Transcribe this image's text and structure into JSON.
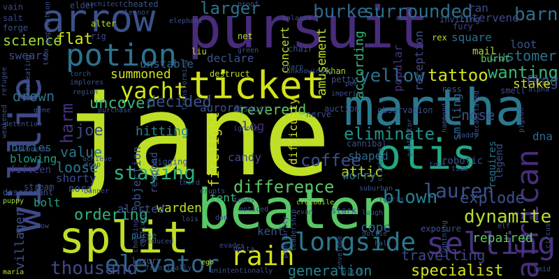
{
  "words": [
    {
      "text": "jane",
      "color": "#bddf26",
      "vertical": false
    },
    {
      "text": "pursuit",
      "color": "#472c7a",
      "vertical": false
    },
    {
      "text": "martha",
      "color": "#2a788e",
      "vertical": false
    },
    {
      "text": "beaten",
      "color": "#58c765",
      "vertical": false
    },
    {
      "text": "otis",
      "color": "#23a884",
      "vertical": false
    },
    {
      "text": "split",
      "color": "#bddf26",
      "vertical": false
    },
    {
      "text": "willie",
      "color": "#3e4989",
      "vertical": true
    },
    {
      "text": "ticket",
      "color": "#d2e21b",
      "vertical": false
    },
    {
      "text": "arrow",
      "color": "#3b518b",
      "vertical": false
    },
    {
      "text": "potion",
      "color": "#2c718e",
      "vertical": false
    },
    {
      "text": "african",
      "color": "#472d7b",
      "vertical": true
    },
    {
      "text": "rain",
      "color": "#d2e21b",
      "vertical": false
    },
    {
      "text": "alongside",
      "color": "#2a788e",
      "vertical": false
    },
    {
      "text": "selling",
      "color": "#46337f",
      "vertical": false
    },
    {
      "text": "elevator",
      "color": "#31688e",
      "vertical": false
    },
    {
      "text": "yacht",
      "color": "#d2e21b",
      "vertical": false
    },
    {
      "text": "burke",
      "color": "#31688e",
      "vertical": false
    },
    {
      "text": "surrounded",
      "color": "#2d708e",
      "vertical": false
    },
    {
      "text": "larger",
      "color": "#2c728e",
      "vertical": false
    },
    {
      "text": "barn",
      "color": "#2d708e",
      "vertical": false
    },
    {
      "text": "difference",
      "color": "#58c765",
      "vertical": false
    },
    {
      "text": "staying",
      "color": "#2db27d",
      "vertical": false
    },
    {
      "text": "lauren",
      "color": "#3b528b",
      "vertical": false
    },
    {
      "text": "blown",
      "color": "#27808e",
      "vertical": false
    },
    {
      "text": "eliminate",
      "color": "#21918c",
      "vertical": false
    },
    {
      "text": "yellow",
      "color": "#2e6e8e",
      "vertical": false
    },
    {
      "text": "dynamite",
      "color": "#b5de2b",
      "vertical": false
    },
    {
      "text": "thousand",
      "color": "#3e4a89",
      "vertical": false
    },
    {
      "text": "explode",
      "color": "#3b528b",
      "vertical": false
    },
    {
      "text": "customer",
      "color": "#2c728e",
      "vertical": false
    },
    {
      "text": "wanting",
      "color": "#35b779",
      "vertical": false
    },
    {
      "text": "tattoo",
      "color": "#d2e21b",
      "vertical": false
    },
    {
      "text": "flat",
      "color": "#d2e21b",
      "vertical": false
    },
    {
      "text": "science",
      "color": "#a0da39",
      "vertical": false
    },
    {
      "text": "harm",
      "color": "#46327e",
      "vertical": true
    },
    {
      "text": "uncover",
      "color": "#35b779",
      "vertical": false
    },
    {
      "text": "decided",
      "color": "#3b528b",
      "vertical": false
    },
    {
      "text": "summoned",
      "color": "#d2e21b",
      "vertical": false
    },
    {
      "text": "drown",
      "color": "#2c728e",
      "vertical": false
    },
    {
      "text": "ordering",
      "color": "#2fb47c",
      "vertical": false
    },
    {
      "text": "loose",
      "color": "#2a788e",
      "vertical": false
    },
    {
      "text": "coffee",
      "color": "#3b518b",
      "vertical": false
    },
    {
      "text": "reverend",
      "color": "#5ec962",
      "vertical": false
    },
    {
      "text": "firefight",
      "color": "#d2e21b",
      "vertical": true
    },
    {
      "text": "joe",
      "color": "#3e4a89",
      "vertical": false
    },
    {
      "text": "value",
      "color": "#2c728e",
      "vertical": false
    },
    {
      "text": "hitting",
      "color": "#25848e",
      "vertical": false
    },
    {
      "text": "specialist",
      "color": "#d2e21b",
      "vertical": false
    },
    {
      "text": "generation",
      "color": "#25848e",
      "vertical": false
    },
    {
      "text": "travelling",
      "color": "#3f4889",
      "vertical": false
    },
    {
      "text": "unstable",
      "color": "#31688e",
      "vertical": false
    },
    {
      "text": "flag",
      "color": "#3e4a89",
      "vertical": false
    },
    {
      "text": "nose",
      "color": "#3b528b",
      "vertical": false
    },
    {
      "text": "stake",
      "color": "#d2e21b",
      "vertical": false
    },
    {
      "text": "mail",
      "color": "#a8db34",
      "vertical": false
    },
    {
      "text": "burnt",
      "color": "#5ec962",
      "vertical": false
    },
    {
      "text": "warden",
      "color": "#bddf26",
      "vertical": false
    },
    {
      "text": "attic",
      "color": "#b5de2b",
      "vertical": false
    },
    {
      "text": "worry",
      "color": "#2c728e",
      "vertical": false
    },
    {
      "text": "tent",
      "color": "#35b779",
      "vertical": false
    },
    {
      "text": "log",
      "color": "#482878",
      "vertical": false
    },
    {
      "text": "candy",
      "color": "#3e4a89",
      "vertical": false
    },
    {
      "text": "shaped",
      "color": "#306a8e",
      "vertical": false
    },
    {
      "text": "shorty",
      "color": "#3e4a89",
      "vertical": false
    },
    {
      "text": "blowing",
      "color": "#1f9f88",
      "vertical": false
    },
    {
      "text": "fifteen",
      "color": "#443a83",
      "vertical": false
    },
    {
      "text": "buries",
      "color": "#2e6e8e",
      "vertical": false
    },
    {
      "text": "bolt",
      "color": "#22a785",
      "vertical": false
    },
    {
      "text": "nora",
      "color": "#3b528b",
      "vertical": false
    },
    {
      "text": "repaired",
      "color": "#5ec962",
      "vertical": false
    },
    {
      "text": "cope",
      "color": "#31688e",
      "vertical": false
    },
    {
      "text": "kent",
      "color": "#3b528b",
      "vertical": false
    },
    {
      "text": "alerted",
      "color": "#3b528b",
      "vertical": false
    },
    {
      "text": "swears",
      "color": "#3e4a89",
      "vertical": false
    },
    {
      "text": "villager",
      "color": "#3b528b",
      "vertical": true
    },
    {
      "text": "declare",
      "color": "#3b528b",
      "vertical": false
    },
    {
      "text": "amusement",
      "color": "#bddf26",
      "vertical": true
    },
    {
      "text": "according",
      "color": "#35b779",
      "vertical": true
    },
    {
      "text": "difficulty",
      "color": "#d2e21b",
      "vertical": true
    },
    {
      "text": "objection",
      "color": "#3b518b",
      "vertical": true
    },
    {
      "text": "respond",
      "color": "#3b528b",
      "vertical": true
    },
    {
      "text": "aurora",
      "color": "#3b528b",
      "vertical": false
    },
    {
      "text": "concert",
      "color": "#bddf26",
      "vertical": true
    },
    {
      "text": "popular",
      "color": "#46327e",
      "vertical": true
    },
    {
      "text": "reception",
      "color": "#3e4a89",
      "vertical": true
    },
    {
      "text": "intervene",
      "color": "#3e4a89",
      "vertical": false
    },
    {
      "text": "loot",
      "color": "#3b528b",
      "vertical": false
    },
    {
      "text": "square",
      "color": "#2e6e8e",
      "vertical": false
    },
    {
      "text": "ran",
      "color": "#3e4a89",
      "vertical": false
    },
    {
      "text": "smiling",
      "color": "#31688e",
      "vertical": true
    },
    {
      "text": "legend",
      "color": "#3b528b",
      "vertical": true
    },
    {
      "text": "requires",
      "color": "#2c718e",
      "vertical": true
    },
    {
      "text": "dna",
      "color": "#31688e",
      "vertical": false
    },
    {
      "text": "robotic",
      "color": "#3b528b",
      "vertical": false
    },
    {
      "text": "purse",
      "color": "#2c728e",
      "vertical": false
    },
    {
      "text": "luxury",
      "color": "#3b528b",
      "vertical": false
    },
    {
      "text": "elder",
      "color": "#3e4a89",
      "vertical": false
    },
    {
      "text": "cheated",
      "color": "#3b528b",
      "vertical": false
    },
    {
      "text": "vain",
      "color": "#3e4a89",
      "vertical": false
    },
    {
      "text": "salt",
      "color": "#3e4a89",
      "vertical": false
    },
    {
      "text": "forge",
      "color": "#3b528b",
      "vertical": false
    },
    {
      "text": "alter",
      "color": "#bddf26",
      "vertical": false
    },
    {
      "text": "rig",
      "color": "#3e4a89",
      "vertical": false
    },
    {
      "text": "net",
      "color": "#bddf26",
      "vertical": false
    },
    {
      "text": "liu",
      "color": "#bddf26",
      "vertical": false
    },
    {
      "text": "khan",
      "color": "#a0da39",
      "vertical": false
    },
    {
      "text": "chair",
      "color": "#3b528b",
      "vertical": false
    },
    {
      "text": "petty",
      "color": "#3b528b",
      "vertical": false
    },
    {
      "text": "rex",
      "color": "#bddf26",
      "vertical": false
    },
    {
      "text": "fury",
      "color": "#3e4a89",
      "vertical": false
    },
    {
      "text": "inviting",
      "color": "#3b528b",
      "vertical": false
    },
    {
      "text": "destruct",
      "color": "#bddf26",
      "vertical": false
    },
    {
      "text": "torch",
      "color": "#3b528b",
      "vertical": false
    },
    {
      "text": "implores",
      "color": "#3b528b",
      "vertical": false
    },
    {
      "text": "region",
      "color": "#3b528b",
      "vertical": false
    },
    {
      "text": "disgust",
      "color": "#3b528b",
      "vertical": false
    },
    {
      "text": "auction",
      "color": "#3b528b",
      "vertical": false
    },
    {
      "text": "observation",
      "color": "#3b528b",
      "vertical": false
    },
    {
      "text": "ross",
      "color": "#3b528b",
      "vertical": false
    },
    {
      "text": "smell",
      "color": "#3e4a89",
      "vertical": false
    },
    {
      "text": "nerve",
      "color": "#3b528b",
      "vertical": false
    },
    {
      "text": "ignore",
      "color": "#3b528b",
      "vertical": false
    },
    {
      "text": "cannibal",
      "color": "#3b528b",
      "vertical": false
    },
    {
      "text": "digging",
      "color": "#3b528b",
      "vertical": false
    },
    {
      "text": "achieve",
      "color": "#3b528b",
      "vertical": false
    },
    {
      "text": "drop",
      "color": "#3b528b",
      "vertical": false
    },
    {
      "text": "advanced",
      "color": "#3b528b",
      "vertical": false
    },
    {
      "text": "stream",
      "color": "#3b528b",
      "vertical": false
    },
    {
      "text": "descendant",
      "color": "#3b528b",
      "vertical": false
    },
    {
      "text": "puppy",
      "color": "#a0da39",
      "vertical": false
    },
    {
      "text": "cow",
      "color": "#3b528b",
      "vertical": false
    },
    {
      "text": "maria",
      "color": "#bddf26",
      "vertical": false
    },
    {
      "text": "don",
      "color": "#3b528b",
      "vertical": false
    },
    {
      "text": "lois",
      "color": "#3b528b",
      "vertical": false
    },
    {
      "text": "evades",
      "color": "#3b528b",
      "vertical": false
    },
    {
      "text": "delta",
      "color": "#3b528b",
      "vertical": false
    },
    {
      "text": "ego",
      "color": "#bddf26",
      "vertical": false
    },
    {
      "text": "unintentionally",
      "color": "#3b528b",
      "vertical": false
    },
    {
      "text": "crocodile",
      "color": "#a0da39",
      "vertical": false
    },
    {
      "text": "evan",
      "color": "#3b528b",
      "vertical": false
    },
    {
      "text": "stark",
      "color": "#3b528b",
      "vertical": false
    },
    {
      "text": "laugh",
      "color": "#3b528b",
      "vertical": false
    },
    {
      "text": "dottie",
      "color": "#3b528b",
      "vertical": false
    },
    {
      "text": "half",
      "color": "#3b528b",
      "vertical": false
    },
    {
      "text": "exposure",
      "color": "#3b528b",
      "vertical": false
    },
    {
      "text": "amid",
      "color": "#3b528b",
      "vertical": false
    },
    {
      "text": "elf",
      "color": "#3b528b",
      "vertical": false
    },
    {
      "text": "ferris",
      "color": "#3b528b",
      "vertical": false
    },
    {
      "text": "suburban",
      "color": "#3b528b",
      "vertical": false
    },
    {
      "text": "tide",
      "color": "#3b528b",
      "vertical": false
    },
    {
      "text": "toss",
      "color": "#3b528b",
      "vertical": false
    },
    {
      "text": "third",
      "color": "#3b528b",
      "vertical": false
    },
    {
      "text": "erupts",
      "color": "#3b528b",
      "vertical": false
    },
    {
      "text": "tends",
      "color": "#3b528b",
      "vertical": false
    },
    {
      "text": "noticed",
      "color": "#3b528b",
      "vertical": false
    },
    {
      "text": "pitch",
      "color": "#3b528b",
      "vertical": false
    },
    {
      "text": "frantically",
      "color": "#3b528b",
      "vertical": false
    },
    {
      "text": "produced",
      "color": "#3b528b",
      "vertical": false
    },
    {
      "text": "architect",
      "color": "#3b528b",
      "vertical": false
    },
    {
      "text": "eleanor",
      "color": "#3b528b",
      "vertical": false
    },
    {
      "text": "proof",
      "color": "#3b528b",
      "vertical": false
    },
    {
      "text": "balance",
      "color": "#3b528b",
      "vertical": false
    },
    {
      "text": "elephant",
      "color": "#3b528b",
      "vertical": false
    },
    {
      "text": "green",
      "color": "#3b528b",
      "vertical": false
    },
    {
      "text": "unknowingly",
      "color": "#3b528b",
      "vertical": false
    },
    {
      "text": "imperial",
      "color": "#3b528b",
      "vertical": false
    },
    {
      "text": "per",
      "color": "#3b528b",
      "vertical": false
    },
    {
      "text": "gene",
      "color": "#3b528b",
      "vertical": false
    },
    {
      "text": "detention",
      "color": "#3b528b",
      "vertical": false
    },
    {
      "text": "banner",
      "color": "#3b528b",
      "vertical": false
    },
    {
      "text": "row",
      "color": "#3b528b",
      "vertical": false
    },
    {
      "text": "alpha",
      "color": "#3b528b",
      "vertical": false
    },
    {
      "text": "pretty",
      "color": "#3b528b",
      "vertical": false
    },
    {
      "text": "daddy",
      "color": "#3b528b",
      "vertical": false
    },
    {
      "text": "purchase",
      "color": "#3b528b",
      "vertical": false
    },
    {
      "text": "refugee",
      "color": "#3b528b",
      "vertical": true
    },
    {
      "text": "weakened",
      "color": "#3b528b",
      "vertical": true
    },
    {
      "text": "population",
      "color": "#3b528b",
      "vertical": true
    },
    {
      "text": "trio",
      "color": "#3b528b",
      "vertical": true
    },
    {
      "text": "defeating",
      "color": "#3b528b",
      "vertical": true
    },
    {
      "text": "transforming",
      "color": "#3b528b",
      "vertical": true
    },
    {
      "text": "captivity",
      "color": "#3b528b",
      "vertical": true
    },
    {
      "text": "popularity",
      "color": "#3b528b",
      "vertical": true
    },
    {
      "text": "leadership",
      "color": "#3b528b",
      "vertical": true
    },
    {
      "text": "envelope",
      "color": "#3b528b",
      "vertical": true
    },
    {
      "text": "decapitated",
      "color": "#3b528b",
      "vertical": true
    },
    {
      "text": "pigeon",
      "color": "#3b528b",
      "vertical": true
    },
    {
      "text": "hammond",
      "color": "#3b528b",
      "vertical": true
    },
    {
      "text": "protector",
      "color": "#3b528b",
      "vertical": true
    },
    {
      "text": "lightning",
      "color": "#3b528b",
      "vertical": true
    },
    {
      "text": "climbing",
      "color": "#3b528b",
      "vertical": true
    },
    {
      "text": "choosing",
      "color": "#3b528b",
      "vertical": true
    },
    {
      "text": "circus",
      "color": "#3b528b",
      "vertical": true
    },
    {
      "text": "mi",
      "color": "#3b528b",
      "vertical": false
    },
    {
      "text": "sharp",
      "color": "#3b528b",
      "vertical": false
    }
  ]
}
